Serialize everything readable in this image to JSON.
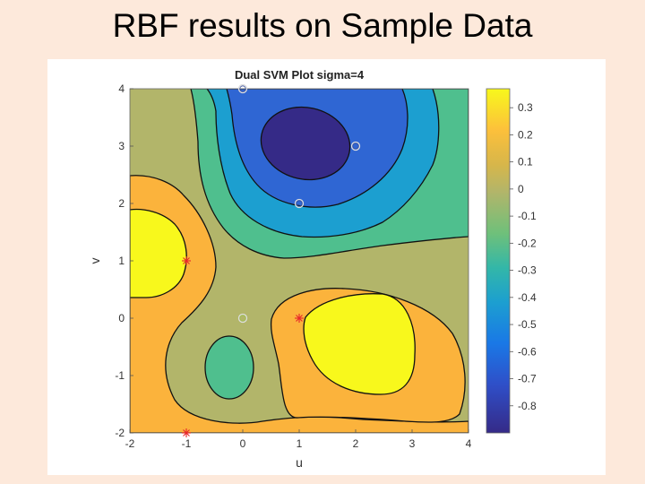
{
  "slide": {
    "title": "RBF results on Sample Data"
  },
  "chart_data": {
    "type": "heatmap",
    "subtype": "filled-contour",
    "title": "Dual SVM Plot sigma=4",
    "xlabel": "u",
    "ylabel": "v",
    "xlim": [
      -2,
      4
    ],
    "ylim": [
      -2,
      4
    ],
    "xticks": [
      "-2",
      "-1",
      "0",
      "1",
      "2",
      "3",
      "4"
    ],
    "yticks": [
      "-2",
      "-1",
      "0",
      "1",
      "2",
      "3",
      "4"
    ],
    "colorbar": {
      "range": [
        -0.9,
        0.37
      ],
      "ticks": [
        "0.3",
        "0.2",
        "0.1",
        "0",
        "-0.1",
        "-0.2",
        "-0.3",
        "-0.4",
        "-0.5",
        "-0.6",
        "-0.7",
        "-0.8"
      ],
      "tick_values": [
        0.3,
        0.2,
        0.1,
        0,
        -0.1,
        -0.2,
        -0.3,
        -0.4,
        -0.5,
        -0.6,
        -0.7,
        -0.8
      ]
    },
    "colors": {
      "deep_blue": "#352a87",
      "blue": "#2f66d3",
      "cyan_blue": "#1c9fd0",
      "teal": "#33b7a8",
      "green_teal": "#4fbf8e",
      "olive": "#b2b56a",
      "orange": "#fbb33c",
      "yellow": "#f8f81c"
    },
    "grid": false,
    "legend": "none",
    "series": [
      {
        "marker": "circle",
        "points": [
          [
            0,
            4
          ],
          [
            2,
            3
          ],
          [
            1,
            2
          ],
          [
            0,
            0
          ]
        ]
      },
      {
        "marker": "asterisk",
        "points": [
          [
            -1,
            1
          ],
          [
            1,
            0
          ],
          [
            -1,
            -2
          ]
        ]
      }
    ]
  }
}
